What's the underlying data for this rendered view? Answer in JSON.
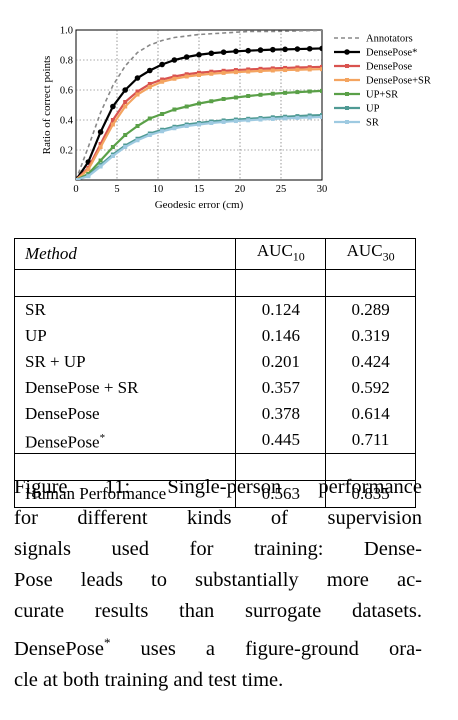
{
  "chart_data": {
    "type": "line",
    "xlabel": "Geodesic error (cm)",
    "ylabel": "Ratio of correct points",
    "xlim": [
      0,
      30
    ],
    "ylim": [
      0,
      1.0
    ],
    "xticks": [
      "0",
      "5",
      "10",
      "15",
      "20",
      "25",
      "30"
    ],
    "yticks": [
      "0.2",
      "0.4",
      "0.6",
      "0.8",
      "1.0"
    ],
    "grid": true,
    "legend": "right",
    "x": [
      0,
      1.5,
      3,
      4.5,
      6,
      7.5,
      9,
      10.5,
      12,
      13.5,
      15,
      16.5,
      18,
      19.5,
      21,
      22.5,
      24,
      25.5,
      27,
      28.5,
      30
    ],
    "series": [
      {
        "name": "Annotators",
        "color": "#888888",
        "style": "dashed",
        "values": [
          0,
          0.22,
          0.45,
          0.63,
          0.76,
          0.85,
          0.9,
          0.93,
          0.95,
          0.96,
          0.97,
          0.975,
          0.98,
          0.985,
          0.99,
          0.99,
          0.99,
          0.992,
          0.994,
          0.996,
          0.998
        ]
      },
      {
        "name": "DensePose*",
        "color": "#000000",
        "style": "solid",
        "values": [
          0,
          0.12,
          0.32,
          0.49,
          0.6,
          0.68,
          0.73,
          0.77,
          0.8,
          0.82,
          0.835,
          0.845,
          0.852,
          0.858,
          0.862,
          0.866,
          0.869,
          0.871,
          0.873,
          0.875,
          0.877
        ]
      },
      {
        "name": "DensePose",
        "color": "#d9534f",
        "style": "solid",
        "values": [
          0,
          0.08,
          0.24,
          0.4,
          0.52,
          0.59,
          0.64,
          0.67,
          0.69,
          0.705,
          0.715,
          0.722,
          0.728,
          0.733,
          0.737,
          0.741,
          0.744,
          0.747,
          0.75,
          0.752,
          0.754
        ]
      },
      {
        "name": "DensePose+SR",
        "color": "#f4a460",
        "style": "solid",
        "values": [
          0,
          0.07,
          0.22,
          0.37,
          0.49,
          0.57,
          0.62,
          0.655,
          0.675,
          0.69,
          0.7,
          0.708,
          0.714,
          0.719,
          0.723,
          0.727,
          0.73,
          0.733,
          0.735,
          0.737,
          0.739
        ]
      },
      {
        "name": "UP+SR",
        "color": "#5aa048",
        "style": "solid",
        "values": [
          0,
          0.04,
          0.13,
          0.22,
          0.3,
          0.36,
          0.41,
          0.44,
          0.47,
          0.49,
          0.51,
          0.525,
          0.54,
          0.55,
          0.56,
          0.568,
          0.575,
          0.581,
          0.586,
          0.59,
          0.594
        ]
      },
      {
        "name": "UP",
        "color": "#4f9a94",
        "style": "solid",
        "values": [
          0,
          0.03,
          0.1,
          0.17,
          0.23,
          0.275,
          0.31,
          0.335,
          0.355,
          0.37,
          0.38,
          0.39,
          0.397,
          0.403,
          0.408,
          0.413,
          0.418,
          0.422,
          0.426,
          0.43,
          0.433
        ]
      },
      {
        "name": "SR",
        "color": "#9ecae1",
        "style": "solid",
        "values": [
          0,
          0.025,
          0.09,
          0.16,
          0.22,
          0.265,
          0.3,
          0.325,
          0.345,
          0.36,
          0.37,
          0.38,
          0.387,
          0.393,
          0.398,
          0.403,
          0.407,
          0.411,
          0.414,
          0.417,
          0.42
        ]
      }
    ]
  },
  "table": {
    "header": {
      "method": "Method",
      "auc10": "AUC",
      "auc10_sub": "10",
      "auc30": "AUC",
      "auc30_sub": "30"
    },
    "rows": [
      {
        "method": "SR",
        "auc10": "0.124",
        "auc30": "0.289"
      },
      {
        "method": "UP",
        "auc10": "0.146",
        "auc30": "0.319"
      },
      {
        "method": "SR + UP",
        "auc10": "0.201",
        "auc30": "0.424"
      },
      {
        "method": "DensePose + SR",
        "auc10": "0.357",
        "auc30": "0.592"
      },
      {
        "method": "DensePose",
        "auc10": "0.378",
        "auc30": "0.614"
      },
      {
        "method": "DensePose",
        "method_sup": "*",
        "auc10": "0.445",
        "auc30": "0.711"
      }
    ],
    "footer_row": {
      "method": "Human Performance",
      "auc10": "0.563",
      "auc30": "0.835"
    }
  },
  "caption": {
    "line1": "Figure 11: Single-person performance",
    "line2": "for different kinds of supervision",
    "line3": "signals used for training: Dense-",
    "line4": "Pose leads to substantially more ac-",
    "line5": "curate results than surrogate datasets.",
    "line6_a": "DensePose",
    "line6_sup": "*",
    "line6_b": " uses a figure-ground ora-",
    "line7": "cle at both training and test time."
  }
}
